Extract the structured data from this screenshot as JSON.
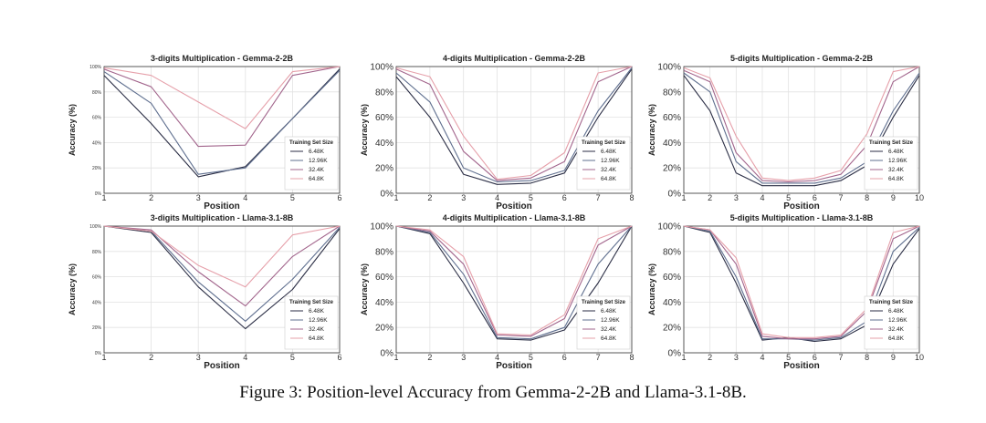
{
  "figure": {
    "caption": "Figure 3: Position-level Accuracy from Gemma-2-2B and Llama-3.1-8B.",
    "series_colors": {
      "6.48K": "#2b2e45",
      "12.96K": "#5f6f8f",
      "32.4K": "#a2658c",
      "64.8K": "#e6a0aa"
    }
  },
  "chart_data": [
    {
      "type": "line",
      "title": "3-digits Multiplication - Gemma-2-2B",
      "xlabel": "Position",
      "ylabel": "Accuracy (%)",
      "x": [
        1,
        2,
        3,
        4,
        5,
        6
      ],
      "xticks": [
        "1",
        "2",
        "3",
        "4",
        "5",
        "6"
      ],
      "ylim": [
        0,
        100
      ],
      "yticks": [
        "0%",
        "20%",
        "40%",
        "60%",
        "80%",
        "100%"
      ],
      "grid": true,
      "legend_title": "Training Set Size",
      "legend_position": "right",
      "series": [
        {
          "name": "6.48K",
          "values": [
            93,
            55,
            13,
            21,
            59,
            98
          ]
        },
        {
          "name": "12.96K",
          "values": [
            96,
            71,
            15,
            20,
            59,
            97
          ]
        },
        {
          "name": "32.4K",
          "values": [
            98,
            84,
            37,
            38,
            93,
            100
          ]
        },
        {
          "name": "64.8K",
          "values": [
            99,
            93,
            72,
            51,
            96,
            100
          ]
        }
      ]
    },
    {
      "type": "line",
      "title": "4-digits Multiplication - Gemma-2-2B",
      "xlabel": "Position",
      "ylabel": "Accuracy (%)",
      "x": [
        1,
        2,
        3,
        4,
        5,
        6,
        7,
        8
      ],
      "xticks": [
        "1",
        "2",
        "3",
        "4",
        "5",
        "6",
        "7",
        "8"
      ],
      "ylim": [
        0,
        100
      ],
      "yticks": [
        "0%",
        "20%",
        "40%",
        "60%",
        "80%",
        "100%"
      ],
      "grid": true,
      "legend_title": "Training Set Size",
      "legend_position": "right",
      "series": [
        {
          "name": "6.48K",
          "values": [
            92,
            60,
            15,
            7,
            8,
            16,
            60,
            98
          ]
        },
        {
          "name": "12.96K",
          "values": [
            95,
            72,
            20,
            9,
            10,
            18,
            65,
            99
          ]
        },
        {
          "name": "32.4K",
          "values": [
            98,
            86,
            33,
            10,
            12,
            25,
            88,
            100
          ]
        },
        {
          "name": "64.8K",
          "values": [
            99,
            92,
            45,
            11,
            14,
            32,
            95,
            100
          ]
        }
      ]
    },
    {
      "type": "line",
      "title": "5-digits Multiplication - Gemma-2-2B",
      "xlabel": "Position",
      "ylabel": "Accuracy (%)",
      "x": [
        1,
        2,
        3,
        4,
        5,
        6,
        7,
        8,
        9,
        10
      ],
      "xticks": [
        "1",
        "2",
        "3",
        "4",
        "5",
        "6",
        "7",
        "8",
        "9",
        "10"
      ],
      "ylim": [
        0,
        100
      ],
      "yticks": [
        "0%",
        "20%",
        "40%",
        "60%",
        "80%",
        "100%"
      ],
      "grid": true,
      "legend_title": "Training Set Size",
      "legend_position": "right",
      "series": [
        {
          "name": "6.48K",
          "values": [
            93,
            65,
            16,
            6,
            6,
            6,
            10,
            22,
            60,
            93
          ]
        },
        {
          "name": "12.96K",
          "values": [
            95,
            80,
            25,
            8,
            8,
            8,
            12,
            25,
            65,
            95
          ]
        },
        {
          "name": "32.4K",
          "values": [
            97,
            88,
            32,
            10,
            9,
            10,
            15,
            38,
            88,
            100
          ]
        },
        {
          "name": "64.8K",
          "values": [
            99,
            91,
            45,
            12,
            10,
            12,
            18,
            47,
            96,
            100
          ]
        }
      ]
    },
    {
      "type": "line",
      "title": "3-digits Multiplication - Llama-3.1-8B",
      "xlabel": "Position",
      "ylabel": "Accuracy (%)",
      "x": [
        1,
        2,
        3,
        4,
        5,
        6
      ],
      "xticks": [
        "1",
        "2",
        "3",
        "4",
        "5",
        "6"
      ],
      "ylim": [
        0,
        100
      ],
      "yticks": [
        "0%",
        "20%",
        "40%",
        "60%",
        "80%",
        "100%"
      ],
      "grid": true,
      "legend_title": "Training Set Size",
      "legend_position": "right",
      "series": [
        {
          "name": "6.48K",
          "values": [
            100,
            95,
            52,
            19,
            50,
            98
          ]
        },
        {
          "name": "12.96K",
          "values": [
            100,
            96,
            56,
            25,
            58,
            99
          ]
        },
        {
          "name": "32.4K",
          "values": [
            100,
            97,
            64,
            37,
            76,
            100
          ]
        },
        {
          "name": "64.8K",
          "values": [
            100,
            96,
            69,
            52,
            93,
            100
          ]
        }
      ]
    },
    {
      "type": "line",
      "title": "4-digits Multiplication - Llama-3.1-8B",
      "xlabel": "Position",
      "ylabel": "Accuracy (%)",
      "x": [
        1,
        2,
        3,
        4,
        5,
        6,
        7,
        8
      ],
      "xticks": [
        "1",
        "2",
        "3",
        "4",
        "5",
        "6",
        "7",
        "8"
      ],
      "ylim": [
        0,
        100
      ],
      "yticks": [
        "0%",
        "20%",
        "40%",
        "60%",
        "80%",
        "100%"
      ],
      "grid": true,
      "legend_title": "Training Set Size",
      "legend_position": "right",
      "series": [
        {
          "name": "6.48K",
          "values": [
            100,
            94,
            55,
            11,
            10,
            18,
            55,
            100
          ]
        },
        {
          "name": "12.96K",
          "values": [
            100,
            95,
            62,
            12,
            11,
            20,
            70,
            100
          ]
        },
        {
          "name": "32.4K",
          "values": [
            100,
            96,
            70,
            14,
            13,
            27,
            85,
            100
          ]
        },
        {
          "name": "64.8K",
          "values": [
            100,
            97,
            76,
            15,
            14,
            30,
            90,
            100
          ]
        }
      ]
    },
    {
      "type": "line",
      "title": "5-digits Multiplication - Llama-3.1-8B",
      "xlabel": "Position",
      "ylabel": "Accuracy (%)",
      "x": [
        1,
        2,
        3,
        4,
        5,
        6,
        7,
        8,
        9,
        10
      ],
      "xticks": [
        "1",
        "2",
        "3",
        "4",
        "5",
        "6",
        "7",
        "8",
        "9",
        "10"
      ],
      "ylim": [
        0,
        100
      ],
      "yticks": [
        "0%",
        "20%",
        "40%",
        "60%",
        "80%",
        "100%"
      ],
      "grid": true,
      "legend_title": "Training Set Size",
      "legend_position": "right",
      "series": [
        {
          "name": "6.48K",
          "values": [
            100,
            95,
            55,
            10,
            12,
            9,
            11,
            22,
            70,
            98
          ]
        },
        {
          "name": "12.96K",
          "values": [
            100,
            96,
            60,
            11,
            11,
            10,
            12,
            25,
            80,
            99
          ]
        },
        {
          "name": "32.4K",
          "values": [
            100,
            97,
            70,
            13,
            11,
            11,
            13,
            33,
            90,
            100
          ]
        },
        {
          "name": "64.8K",
          "values": [
            100,
            97,
            75,
            15,
            12,
            12,
            14,
            35,
            95,
            100
          ]
        }
      ]
    }
  ]
}
